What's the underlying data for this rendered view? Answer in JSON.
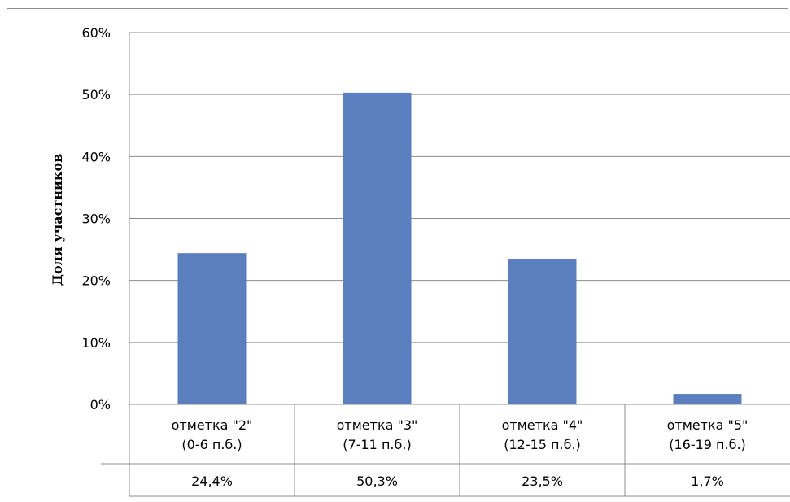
{
  "chart_data": {
    "type": "bar",
    "ylabel": "Доля участников",
    "xlabel": "",
    "title": "",
    "ylim": [
      0,
      60
    ],
    "yticks": [
      "0%",
      "10%",
      "20%",
      "30%",
      "40%",
      "50%",
      "60%"
    ],
    "grid": true,
    "categories": [
      [
        "отметка  \"2\"",
        "(0-6 п.б.)"
      ],
      [
        "отметка  \"3\"",
        "(7-11 п.б.)"
      ],
      [
        "отметка  \"4\"",
        "(12-15 п.б.)"
      ],
      [
        "отметка  \"5\"",
        "(16-19 п.б.)"
      ]
    ],
    "values": [
      24.4,
      50.3,
      23.5,
      1.7
    ],
    "value_labels": [
      "24,4%",
      "50,3%",
      "23,5%",
      "1,7%"
    ],
    "bar_color": "#5b7fbe",
    "grid_color": "#8c8c8c"
  }
}
